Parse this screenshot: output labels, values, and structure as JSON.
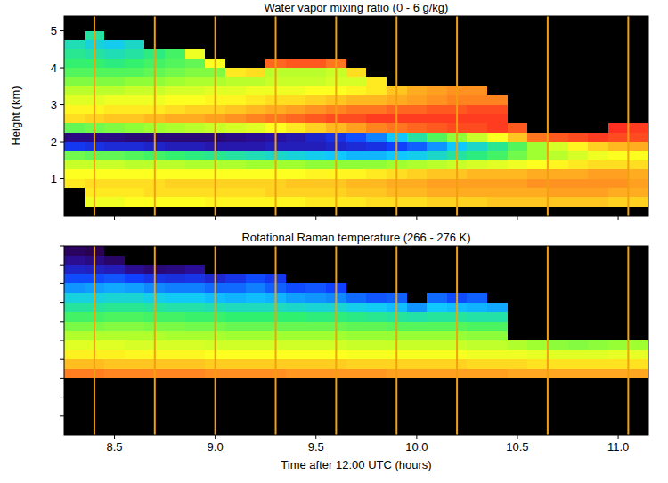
{
  "chart_data": [
    {
      "type": "heatmap",
      "title": "Water vapor mixing ratio (0 - 6 g/kg)",
      "y_label": "Height (km)",
      "xlim": [
        8.25,
        11.15
      ],
      "ylim": [
        0,
        5.4
      ],
      "xticks": [
        8.5,
        {
          "value": 9,
          "label": "9.0"
        },
        9.5,
        {
          "value": 10,
          "label": "10.0"
        },
        10.5,
        {
          "value": 11,
          "label": "11.0"
        }
      ],
      "yticks": [
        1,
        2,
        3,
        4,
        5
      ],
      "tick_labels": "y",
      "zlim": [
        0,
        6
      ],
      "color": "#f0a010",
      "vlines": [
        8.4,
        8.7,
        9.0,
        9.3,
        9.6,
        9.9,
        10.2,
        10.65,
        11.05
      ],
      "x_edges": [
        8.25,
        8.35,
        8.45,
        8.55,
        8.65,
        8.75,
        8.85,
        8.95,
        9.05,
        9.15,
        9.25,
        9.35,
        9.45,
        9.55,
        9.65,
        9.75,
        9.85,
        9.95,
        10.05,
        10.15,
        10.25,
        10.35,
        10.45,
        10.55,
        10.65,
        10.75,
        10.85,
        10.95,
        11.05,
        11.15
      ],
      "y_edges": [
        0.25,
        0.5,
        0.75,
        1.0,
        1.25,
        1.5,
        1.75,
        2.0,
        2.25,
        2.5,
        2.75,
        3.0,
        3.25,
        3.5,
        3.75,
        4.0,
        4.25,
        4.5,
        4.75,
        5.0
      ],
      "cells": [
        [
          null,
          null,
          4.5,
          4.3,
          3.9,
          3.3,
          1.2,
          0.4,
          3.2,
          4.6,
          4.4,
          4.1,
          3.8,
          3.4,
          3.1,
          2.9,
          2.7,
          2.5,
          null
        ],
        [
          4.2,
          4.5,
          4.6,
          4.3,
          3.9,
          3.2,
          1.1,
          0.4,
          3.3,
          4.7,
          4.4,
          4.1,
          3.8,
          3.4,
          3.1,
          2.9,
          2.6,
          2.3,
          2.6
        ],
        [
          4.2,
          4.5,
          4.6,
          4.3,
          3.9,
          3.2,
          1.0,
          0.4,
          3.4,
          4.8,
          4.5,
          4.2,
          3.8,
          3.4,
          3.1,
          2.8,
          2.5,
          2.2,
          null
        ],
        [
          4.3,
          4.5,
          4.6,
          4.3,
          3.8,
          3.1,
          1.0,
          0.3,
          3.5,
          4.8,
          4.5,
          4.2,
          3.9,
          3.5,
          3.1,
          2.9,
          2.6,
          2.4,
          null
        ],
        [
          4.3,
          4.6,
          4.6,
          4.3,
          3.8,
          3.0,
          0.9,
          0.3,
          3.6,
          4.9,
          4.5,
          4.2,
          3.9,
          3.5,
          3.2,
          3.0,
          2.8,
          null,
          null
        ],
        [
          4.3,
          4.6,
          4.7,
          4.3,
          3.8,
          2.9,
          0.8,
          0.3,
          3.7,
          5.0,
          4.6,
          4.3,
          4.0,
          3.6,
          3.3,
          3.1,
          3.0,
          null,
          null
        ],
        [
          4.3,
          4.6,
          4.7,
          4.3,
          3.7,
          2.8,
          0.8,
          0.3,
          3.8,
          5.0,
          4.7,
          4.3,
          4.0,
          3.7,
          3.4,
          3.2,
          4.2,
          null,
          null
        ],
        [
          4.4,
          4.6,
          4.7,
          4.3,
          3.7,
          2.7,
          0.7,
          0.3,
          3.9,
          5.1,
          4.7,
          4.4,
          4.1,
          3.7,
          3.4,
          4.3,
          null,
          null,
          null
        ],
        [
          4.4,
          4.6,
          4.7,
          4.3,
          3.7,
          2.6,
          0.7,
          0.4,
          4.0,
          5.2,
          4.8,
          4.4,
          4.1,
          3.8,
          4.5,
          null,
          null,
          null,
          null
        ],
        [
          4.4,
          4.6,
          4.7,
          4.3,
          3.6,
          2.5,
          0.7,
          0.5,
          4.1,
          5.3,
          4.9,
          4.5,
          4.2,
          3.8,
          4.6,
          null,
          null,
          null,
          null
        ],
        [
          4.4,
          4.7,
          4.7,
          4.3,
          3.6,
          2.4,
          0.8,
          0.6,
          4.3,
          5.4,
          5.0,
          4.6,
          4.2,
          3.9,
          3.8,
          5.5,
          null,
          null,
          null
        ],
        [
          4.4,
          4.7,
          4.8,
          4.3,
          3.6,
          2.3,
          0.8,
          0.7,
          4.5,
          5.5,
          5.1,
          4.6,
          4.2,
          3.9,
          3.8,
          5.6,
          null,
          null,
          null
        ],
        [
          4.5,
          4.7,
          4.8,
          4.4,
          3.5,
          2.2,
          0.8,
          0.9,
          4.7,
          5.6,
          5.2,
          4.7,
          4.3,
          3.9,
          3.8,
          5.6,
          null,
          null,
          null
        ],
        [
          4.5,
          4.7,
          4.8,
          4.4,
          3.5,
          2.1,
          0.9,
          1.1,
          4.9,
          5.7,
          5.3,
          4.8,
          4.3,
          4.0,
          3.9,
          5.4,
          null,
          null,
          null
        ],
        [
          4.5,
          4.8,
          4.9,
          4.4,
          3.5,
          2.0,
          1.0,
          1.4,
          5.1,
          5.7,
          5.4,
          4.9,
          4.4,
          4.0,
          4.6,
          null,
          null,
          null,
          null
        ],
        [
          4.6,
          4.8,
          4.9,
          4.5,
          3.5,
          2.0,
          1.1,
          1.7,
          5.3,
          5.8,
          5.4,
          4.9,
          4.5,
          4.5,
          null,
          null,
          null,
          null,
          null
        ],
        [
          4.6,
          4.9,
          5.0,
          4.6,
          3.6,
          2.1,
          1.3,
          2.1,
          5.4,
          5.8,
          5.5,
          5.0,
          4.8,
          null,
          null,
          null,
          null,
          null,
          null
        ],
        [
          4.6,
          4.9,
          5.0,
          4.7,
          3.7,
          2.2,
          1.5,
          2.6,
          5.5,
          5.8,
          5.5,
          5.1,
          5.0,
          null,
          null,
          null,
          null,
          null,
          null
        ],
        [
          4.7,
          5.0,
          5.1,
          4.8,
          3.8,
          2.4,
          1.8,
          3.1,
          5.6,
          5.8,
          5.6,
          5.2,
          5.1,
          null,
          null,
          null,
          null,
          null,
          null
        ],
        [
          4.7,
          5.0,
          5.1,
          4.8,
          3.9,
          2.6,
          2.1,
          3.5,
          5.7,
          5.8,
          5.6,
          5.3,
          5.2,
          null,
          null,
          null,
          null,
          null,
          null
        ],
        [
          4.7,
          5.0,
          5.1,
          4.9,
          4.0,
          2.8,
          2.4,
          3.9,
          5.7,
          5.8,
          5.7,
          5.3,
          5.2,
          null,
          null,
          null,
          null,
          null,
          null
        ],
        [
          4.8,
          5.0,
          5.1,
          4.9,
          4.1,
          3.0,
          2.7,
          4.3,
          5.8,
          5.8,
          5.7,
          5.3,
          null,
          null,
          null,
          null,
          null,
          null,
          null
        ],
        [
          4.8,
          5.0,
          5.1,
          4.9,
          4.2,
          3.3,
          3.1,
          4.8,
          5.6,
          null,
          null,
          null,
          null,
          null,
          null,
          null,
          null,
          null,
          null
        ],
        [
          4.8,
          5.0,
          5.2,
          5.0,
          4.3,
          3.6,
          3.6,
          5.4,
          null,
          null,
          null,
          null,
          null,
          null,
          null,
          null,
          null,
          null,
          null
        ],
        [
          4.8,
          5.1,
          5.2,
          5.0,
          4.4,
          3.8,
          4.0,
          5.6,
          null,
          null,
          null,
          null,
          null,
          null,
          null,
          null,
          null,
          null,
          null
        ],
        [
          4.8,
          5.1,
          5.2,
          5.0,
          4.5,
          4.0,
          4.4,
          5.7,
          null,
          null,
          null,
          null,
          null,
          null,
          null,
          null,
          null,
          null,
          null
        ],
        [
          4.8,
          5.1,
          5.2,
          5.1,
          4.6,
          4.2,
          4.7,
          5.8,
          null,
          null,
          null,
          null,
          null,
          null,
          null,
          null,
          null,
          null,
          null
        ],
        [
          4.7,
          5.0,
          5.2,
          5.1,
          4.6,
          4.3,
          4.9,
          5.7,
          5.9,
          null,
          null,
          null,
          null,
          null,
          null,
          null,
          null,
          null,
          null
        ],
        [
          4.7,
          5.0,
          5.1,
          5.0,
          4.6,
          4.3,
          5.0,
          5.7,
          5.8,
          null,
          null,
          null,
          null,
          null,
          null,
          null,
          null,
          null,
          null
        ]
      ]
    },
    {
      "type": "heatmap",
      "title": "Rotational Raman temperature (266 - 276 K)",
      "x_label": "Time after 12:00 UTC (hours)",
      "xlim": [
        8.25,
        11.15
      ],
      "ylim": [
        0,
        5
      ],
      "xticks": [
        8.5,
        {
          "value": 9,
          "label": "9.0"
        },
        9.5,
        {
          "value": 10,
          "label": "10.0"
        },
        10.5,
        {
          "value": 11,
          "label": "11.0"
        }
      ],
      "yticks": [
        0.5,
        1,
        1.5,
        2,
        2.5,
        3,
        3.5,
        4,
        4.5,
        5
      ],
      "tick_labels": "x",
      "zlim": [
        266,
        276
      ],
      "color": "#f0a010",
      "vlines": [
        8.4,
        8.7,
        9.0,
        9.3,
        9.6,
        9.9,
        10.2,
        10.65,
        11.05
      ],
      "x_edges": [
        8.25,
        8.35,
        8.45,
        8.55,
        8.65,
        8.75,
        8.85,
        8.95,
        9.05,
        9.15,
        9.25,
        9.35,
        9.45,
        9.55,
        9.65,
        9.75,
        9.85,
        9.95,
        10.05,
        10.15,
        10.25,
        10.35,
        10.45,
        10.55,
        10.65,
        10.75,
        10.85,
        10.95,
        11.05,
        11.15
      ],
      "y_edges": [
        1.5,
        1.75,
        2.0,
        2.25,
        2.5,
        2.75,
        3.0,
        3.25,
        3.5,
        3.75,
        4.0,
        4.25,
        4.5,
        4.75,
        5.0
      ],
      "cells": [
        [
          274.9,
          274.1,
          273.4,
          272.8,
          272.2,
          271.6,
          271.0,
          270.4,
          269.8,
          269.0,
          268.3,
          267.5,
          266.8,
          266.2
        ],
        [
          274.9,
          274.1,
          273.4,
          272.8,
          272.2,
          271.6,
          271.0,
          270.4,
          269.8,
          269.1,
          268.3,
          267.4,
          266.6,
          266.0
        ],
        [
          274.8,
          274.0,
          273.4,
          272.8,
          272.2,
          271.7,
          271.1,
          270.5,
          269.9,
          269.2,
          268.4,
          267.3,
          266.3,
          null
        ],
        [
          274.8,
          274.0,
          273.3,
          272.7,
          272.2,
          271.7,
          271.1,
          270.5,
          269.9,
          269.1,
          268.2,
          266.8,
          null,
          null
        ],
        [
          274.8,
          274.0,
          273.3,
          272.7,
          272.2,
          271.6,
          271.0,
          270.4,
          269.7,
          268.9,
          267.9,
          266.5,
          null,
          null
        ],
        [
          274.8,
          274.0,
          273.3,
          272.7,
          272.1,
          271.6,
          271.0,
          270.3,
          269.6,
          268.8,
          267.8,
          266.6,
          null,
          null
        ],
        [
          274.8,
          274.0,
          273.3,
          272.7,
          272.1,
          271.5,
          270.9,
          270.3,
          269.6,
          268.8,
          267.9,
          266.9,
          null,
          null
        ],
        [
          274.7,
          273.9,
          273.2,
          272.6,
          272.1,
          271.5,
          270.9,
          270.2,
          269.4,
          268.6,
          267.6,
          null,
          null,
          null
        ],
        [
          274.7,
          273.9,
          273.2,
          272.6,
          272.0,
          271.4,
          270.8,
          270.1,
          269.3,
          268.6,
          267.9,
          null,
          null,
          null
        ],
        [
          274.7,
          273.9,
          273.2,
          272.6,
          272.0,
          271.4,
          270.8,
          270.1,
          269.4,
          268.8,
          268.3,
          null,
          null,
          null
        ],
        [
          274.7,
          273.9,
          273.2,
          272.6,
          272.0,
          271.4,
          270.8,
          270.1,
          269.3,
          268.5,
          268.0,
          null,
          null,
          null
        ],
        [
          274.6,
          273.9,
          273.2,
          272.6,
          272.0,
          271.4,
          270.8,
          270.0,
          269.1,
          268.3,
          null,
          null,
          null,
          null
        ],
        [
          274.6,
          273.9,
          273.2,
          272.6,
          272.0,
          271.4,
          270.7,
          269.9,
          269.0,
          268.4,
          null,
          null,
          null,
          null
        ],
        [
          274.6,
          273.9,
          273.2,
          272.6,
          272.0,
          271.4,
          270.7,
          269.9,
          268.9,
          268.2,
          null,
          null,
          null,
          null
        ],
        [
          274.6,
          273.8,
          273.1,
          272.5,
          271.9,
          271.3,
          270.6,
          269.7,
          268.6,
          null,
          null,
          null,
          null,
          null
        ],
        [
          274.6,
          273.8,
          273.1,
          272.5,
          271.9,
          271.3,
          270.5,
          269.6,
          268.4,
          null,
          null,
          null,
          null,
          null
        ],
        [
          274.5,
          273.8,
          273.1,
          272.5,
          271.9,
          271.2,
          270.4,
          269.4,
          268.5,
          null,
          null,
          null,
          null,
          null
        ],
        [
          274.5,
          273.8,
          273.1,
          272.5,
          271.9,
          271.2,
          270.3,
          269.0,
          null,
          null,
          null,
          null,
          null,
          null
        ],
        [
          274.5,
          273.8,
          273.1,
          272.5,
          271.9,
          271.2,
          270.4,
          269.5,
          268.6,
          null,
          null,
          null,
          null,
          null
        ],
        [
          274.5,
          273.8,
          273.1,
          272.5,
          271.9,
          271.2,
          270.4,
          269.4,
          268.3,
          null,
          null,
          null,
          null,
          null
        ],
        [
          274.5,
          273.7,
          273.0,
          272.4,
          271.8,
          271.1,
          270.3,
          269.3,
          268.5,
          null,
          null,
          null,
          null,
          null
        ],
        [
          274.5,
          273.7,
          273.0,
          272.4,
          271.8,
          271.1,
          270.3,
          269.2,
          null,
          null,
          null,
          null,
          null,
          null
        ],
        [
          274.4,
          273.7,
          273.0,
          272.2,
          null,
          null,
          null,
          null,
          null,
          null,
          null,
          null,
          null,
          null
        ],
        [
          274.4,
          273.6,
          272.9,
          272.0,
          null,
          null,
          null,
          null,
          null,
          null,
          null,
          null,
          null,
          null
        ],
        [
          274.4,
          273.6,
          272.8,
          271.8,
          null,
          null,
          null,
          null,
          null,
          null,
          null,
          null,
          null,
          null
        ],
        [
          274.4,
          273.6,
          272.8,
          271.7,
          null,
          null,
          null,
          null,
          null,
          null,
          null,
          null,
          null,
          null
        ],
        [
          274.4,
          273.6,
          272.8,
          271.8,
          null,
          null,
          null,
          null,
          null,
          null,
          null,
          null,
          null,
          null
        ],
        [
          274.4,
          273.6,
          272.9,
          271.9,
          null,
          null,
          null,
          null,
          null,
          null,
          null,
          null,
          null,
          null
        ],
        [
          274.4,
          273.6,
          272.9,
          272.0,
          null,
          null,
          null,
          null,
          null,
          null,
          null,
          null,
          null,
          null
        ]
      ]
    }
  ]
}
